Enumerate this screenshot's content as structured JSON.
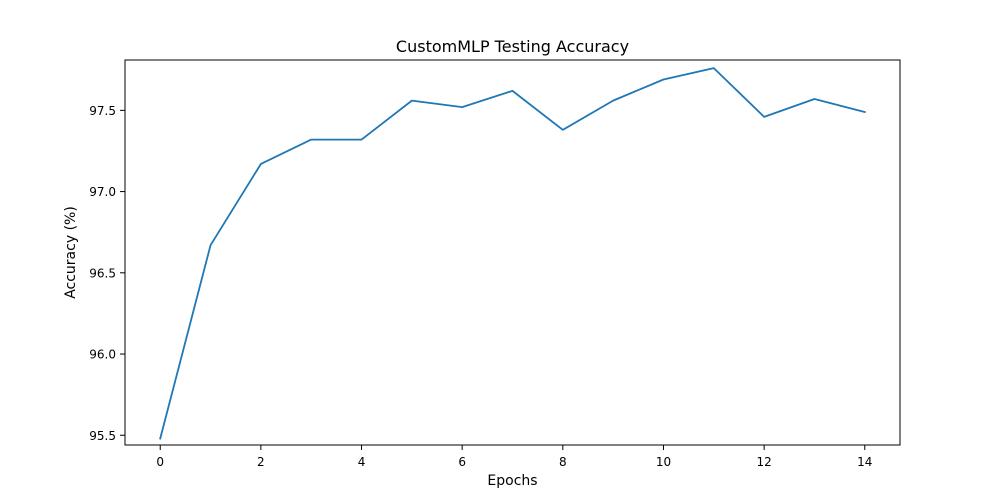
{
  "chart_data": {
    "type": "line",
    "title": "CustomMLP Testing Accuracy",
    "xlabel": "Epochs",
    "ylabel": "Accuracy (%)",
    "xlim": [
      -0.7,
      14.7
    ],
    "ylim": [
      95.44,
      97.81
    ],
    "x_ticks": [
      0,
      2,
      4,
      6,
      8,
      10,
      12,
      14
    ],
    "x_tick_labels": [
      "0",
      "2",
      "4",
      "6",
      "8",
      "10",
      "12",
      "14"
    ],
    "y_ticks": [
      95.5,
      96.0,
      96.5,
      97.0,
      97.5
    ],
    "y_tick_labels": [
      "95.5",
      "96.0",
      "96.5",
      "97.0",
      "97.5"
    ],
    "grid": false,
    "series": [
      {
        "color": "#1f77b4",
        "x": [
          0,
          1,
          2,
          3,
          4,
          5,
          6,
          7,
          8,
          9,
          10,
          11,
          12,
          13,
          14
        ],
        "values": [
          95.48,
          96.67,
          97.17,
          97.32,
          97.32,
          97.56,
          97.52,
          97.62,
          97.38,
          97.56,
          97.69,
          97.76,
          97.46,
          97.57,
          97.49
        ]
      }
    ]
  }
}
